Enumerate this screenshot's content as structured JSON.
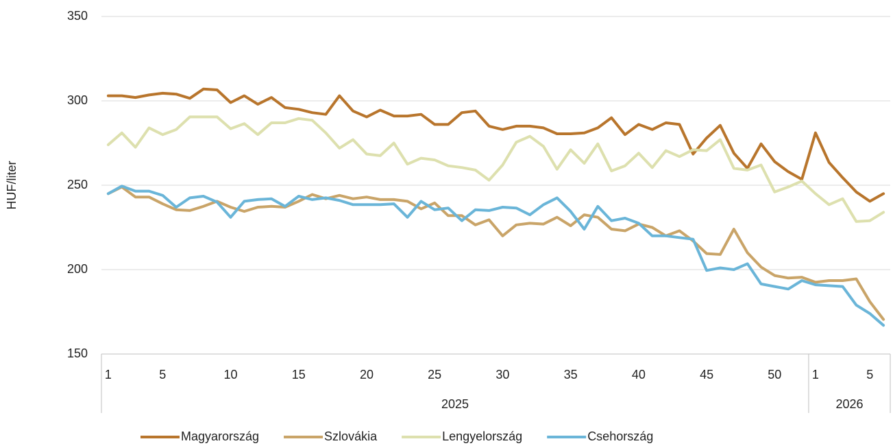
{
  "chart_data": {
    "type": "line",
    "y_label": "HUF/liter",
    "ylim": [
      150,
      350
    ],
    "yticks": [
      150,
      200,
      250,
      300,
      350
    ],
    "grid": true,
    "legend": "bottom",
    "groups": [
      {
        "label": "2025",
        "categories": [
          "1",
          null,
          null,
          null,
          "5",
          null,
          null,
          null,
          null,
          "10",
          null,
          null,
          null,
          null,
          "15",
          null,
          null,
          null,
          null,
          "20",
          null,
          null,
          null,
          null,
          "25",
          null,
          null,
          null,
          null,
          "30",
          null,
          null,
          null,
          null,
          "35",
          null,
          null,
          null,
          null,
          "40",
          null,
          null,
          null,
          null,
          "45",
          null,
          null,
          null,
          null,
          "50",
          null,
          null
        ]
      },
      {
        "label": "2026",
        "categories": [
          "1",
          null,
          null,
          null,
          "5",
          null
        ]
      }
    ],
    "series": [
      {
        "name": "Magyarország",
        "color": "#b8752c",
        "values": [
          303,
          303,
          302,
          303.5,
          304.5,
          304,
          301.5,
          307,
          306.5,
          299,
          303,
          298,
          302,
          296,
          295,
          293,
          292,
          303,
          294,
          290.5,
          294.5,
          291,
          291,
          292,
          286,
          286,
          293,
          294,
          285,
          283,
          285,
          285,
          284,
          280.5,
          280.5,
          281,
          284,
          290,
          280,
          286,
          283,
          287,
          286,
          268.5,
          278,
          285.5,
          269,
          260,
          274.5,
          264,
          258,
          253.5,
          281,
          263.5,
          254.5,
          246,
          240.5,
          245
        ]
      },
      {
        "name": "Szlovákia",
        "color": "#c9a468",
        "values": [
          245,
          249,
          243,
          243,
          239,
          235.5,
          235,
          237.5,
          240.5,
          237,
          234.5,
          237,
          237.5,
          237,
          240.5,
          244.5,
          242,
          244,
          242,
          243,
          241.5,
          241.5,
          240.5,
          236,
          239.5,
          232,
          232,
          226.5,
          229.5,
          220,
          226.5,
          227.5,
          227,
          231,
          226,
          232.5,
          231,
          224,
          223,
          227,
          225,
          220,
          223,
          217,
          209.5,
          209,
          224,
          210,
          201.5,
          196.5,
          195,
          195.5,
          192.5,
          193.5,
          193.5,
          194.5,
          181,
          170.5
        ]
      },
      {
        "name": "Lengyelország",
        "color": "#dde0ae",
        "values": [
          274,
          281,
          272.5,
          284,
          280,
          283,
          290.5,
          290.5,
          290.5,
          283.5,
          286.5,
          280,
          287,
          287,
          289.5,
          288.5,
          281,
          272,
          277,
          268.5,
          267.5,
          275,
          262.5,
          266,
          265,
          261.5,
          260.5,
          259,
          253,
          262,
          275.5,
          279,
          273,
          259.5,
          271,
          263,
          274.5,
          258.5,
          261.5,
          269,
          260.5,
          270.5,
          267,
          271,
          270.5,
          277,
          260,
          259,
          262,
          246,
          249,
          252.5,
          245,
          238.5,
          242,
          228.5,
          229,
          234
        ]
      },
      {
        "name": "Csehország",
        "color": "#6ab5d8",
        "values": [
          245,
          249.5,
          246.5,
          246.5,
          244,
          237,
          242.5,
          243.5,
          240,
          231,
          240.5,
          241.5,
          242,
          237.5,
          243.5,
          241.5,
          242.5,
          241,
          238.5,
          238.5,
          238.5,
          239,
          231,
          240.5,
          235.5,
          236.5,
          229,
          235.5,
          235,
          237,
          236.5,
          232.5,
          238.5,
          242.5,
          234.5,
          224,
          237.5,
          229,
          230.5,
          227.5,
          220,
          220,
          219,
          218,
          199.5,
          201,
          200,
          203.5,
          191.5,
          190,
          188.5,
          193.5,
          191,
          190.5,
          190,
          179,
          174,
          167
        ]
      }
    ]
  }
}
